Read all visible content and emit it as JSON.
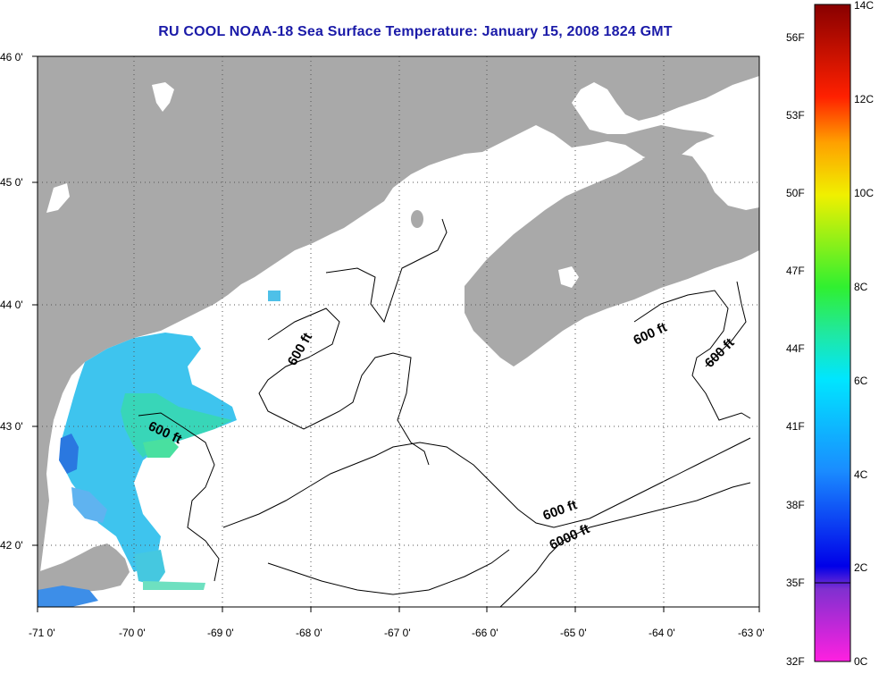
{
  "title": "RU COOL  NOAA-18  Sea Surface Temperature:  January 15, 2008 1824 GMT",
  "latitude_labels": [
    "46 0'",
    "45 0'",
    "44 0'",
    "43 0'",
    "42 0'"
  ],
  "longitude_labels": [
    "-71 0'",
    "-70 0'",
    "-69 0'",
    "-68 0'",
    "-67 0'",
    "-66 0'",
    "-65 0'",
    "-64 0'",
    "-63 0'"
  ],
  "contour_labels": {
    "c1": "600 ft",
    "c2": "600 ft",
    "c3": "600 ft",
    "c4": "600 ft",
    "c5": "6000 ft",
    "c6": "600 ft"
  },
  "colorbar": {
    "celsius": [
      "14C",
      "12C",
      "10C",
      "8C",
      "6C",
      "4C",
      "2C",
      "0C"
    ],
    "fahrenheit": [
      "56F",
      "53F",
      "50F",
      "47F",
      "44F",
      "41F",
      "38F",
      "35F",
      "32F"
    ]
  },
  "colors": {
    "land": "#a9a9a9",
    "title": "#1a1aa8",
    "no_data": "#ffffff"
  }
}
